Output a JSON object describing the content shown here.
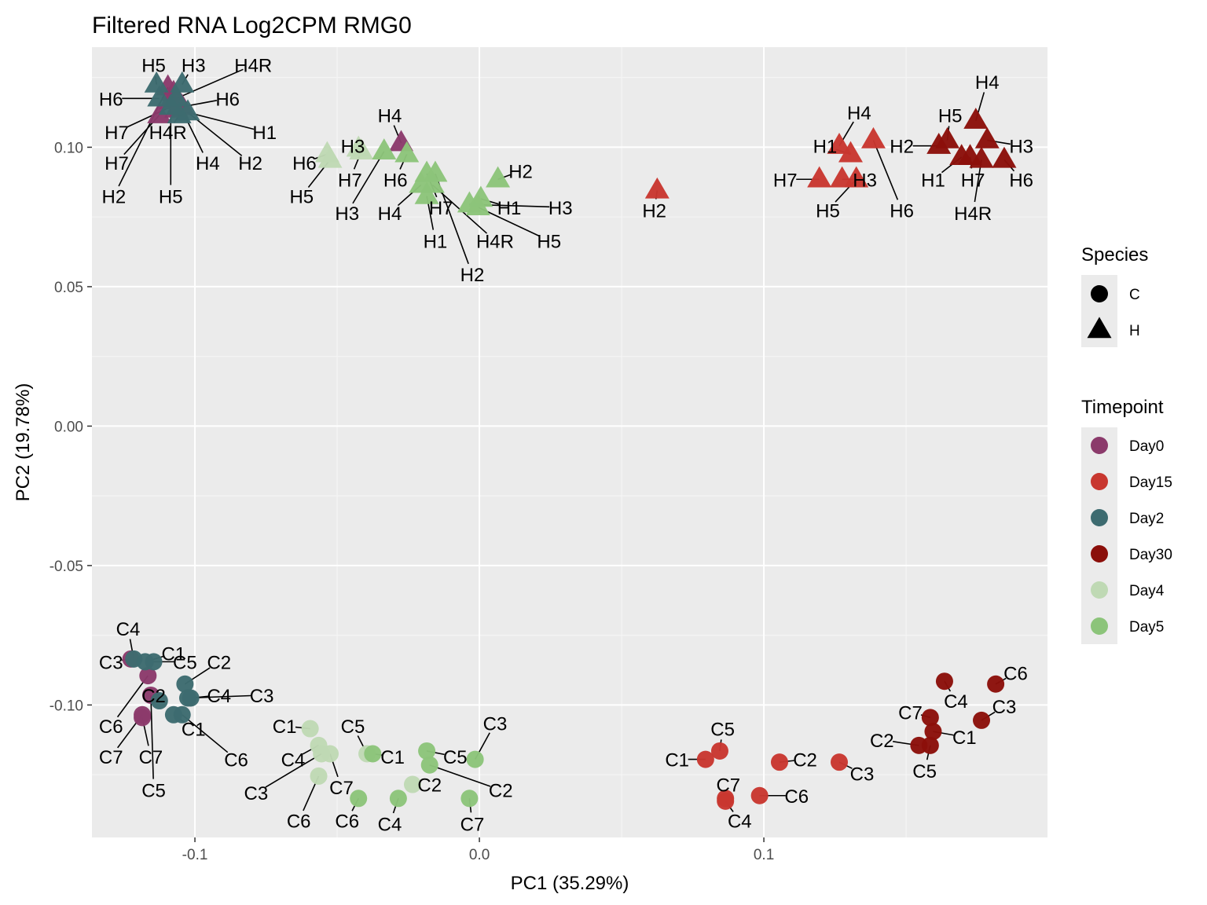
{
  "chart_data": {
    "type": "scatter",
    "title": "Filtered RNA Log2CPM RMG0",
    "xlabel": "PC1 (35.29%)",
    "ylabel": "PC2 (19.78%)",
    "xlim": [
      -0.1362,
      0.1997
    ],
    "ylim": [
      -0.1475,
      0.1359
    ],
    "x_ticks": [
      {
        "value": -0.1,
        "label": "-0.1"
      },
      {
        "value": 0.0,
        "label": "0.0"
      },
      {
        "value": 0.1,
        "label": "0.1"
      }
    ],
    "y_ticks": [
      {
        "value": 0.1,
        "label": "0.10"
      },
      {
        "value": 0.05,
        "label": "0.05"
      },
      {
        "value": 0.0,
        "label": "0.00"
      },
      {
        "value": -0.05,
        "label": "-0.05"
      },
      {
        "value": -0.1,
        "label": "-0.10"
      }
    ],
    "grid": true,
    "legend_position": "right",
    "legend": {
      "species": {
        "title": "Species",
        "items": [
          {
            "label": "C",
            "shape": "circle"
          },
          {
            "label": "H",
            "shape": "triangle"
          }
        ]
      },
      "timepoint": {
        "title": "Timepoint",
        "items": [
          {
            "label": "Day0",
            "color": "#8B3A6B"
          },
          {
            "label": "Day15",
            "color": "#C8372F"
          },
          {
            "label": "Day2",
            "color": "#3D6B70"
          },
          {
            "label": "Day30",
            "color": "#8B0F0A"
          },
          {
            "label": "Day4",
            "color": "#BFD9B4"
          },
          {
            "label": "Day5",
            "color": "#8CC47A"
          }
        ]
      }
    },
    "series": [
      {
        "name": "Day0",
        "color": "#8B3A6B",
        "points": [
          {
            "label": "H5",
            "species": "H",
            "x": -0.1085,
            "y": 0.1165,
            "lx": -0.1085,
            "ly": 0.0825
          },
          {
            "label": "H2",
            "species": "H",
            "x": -0.1095,
            "y": 0.1215,
            "lx": -0.1285,
            "ly": 0.0825
          },
          {
            "label": "H4",
            "species": "H",
            "x": -0.1075,
            "y": 0.1195,
            "lx": -0.0955,
            "ly": 0.0945
          },
          {
            "label": "H6",
            "species": "H",
            "x": -0.1045,
            "y": 0.1145,
            "lx": -0.0885,
            "ly": 0.1175
          },
          {
            "label": "H7",
            "species": "H",
            "x": -0.1125,
            "y": 0.1115,
            "lx": -0.1275,
            "ly": 0.0945
          },
          {
            "label": "H1",
            "species": "H",
            "x": -0.1065,
            "y": 0.1135,
            "lx": -0.0755,
            "ly": 0.1055
          },
          {
            "label": "H4",
            "species": "H",
            "x": -0.0275,
            "y": 0.1015,
            "lx": -0.0315,
            "ly": 0.1115
          },
          {
            "label": "C3",
            "species": "C",
            "x": -0.1225,
            "y": -0.0835,
            "lx": -0.1295,
            "ly": -0.0845
          },
          {
            "label": "C7",
            "species": "C",
            "x": -0.1185,
            "y": -0.1045,
            "lx": -0.1155,
            "ly": -0.1185
          },
          {
            "label": "C6",
            "species": "C",
            "x": -0.1165,
            "y": -0.0895,
            "lx": -0.1295,
            "ly": -0.1075
          },
          {
            "label": "C5",
            "species": "C",
            "x": -0.1155,
            "y": -0.0965,
            "lx": -0.1145,
            "ly": -0.1305
          },
          {
            "label": "C7",
            "species": "C",
            "x": -0.1185,
            "y": -0.1035,
            "lx": -0.1295,
            "ly": -0.1185
          }
        ]
      },
      {
        "name": "Day2",
        "color": "#3D6B70",
        "points": [
          {
            "label": "H5",
            "species": "H",
            "x": -0.1135,
            "y": 0.1225,
            "lx": -0.1145,
            "ly": 0.1295
          },
          {
            "label": "H3",
            "species": "H",
            "x": -0.1045,
            "y": 0.1225,
            "lx": -0.1005,
            "ly": 0.1295
          },
          {
            "label": "H4R",
            "species": "H",
            "x": -0.1065,
            "y": 0.1175,
            "lx": -0.0795,
            "ly": 0.1295
          },
          {
            "label": "H6",
            "species": "H",
            "x": -0.1125,
            "y": 0.1175,
            "lx": -0.1295,
            "ly": 0.1175
          },
          {
            "label": "H4R",
            "species": "H",
            "x": -0.1055,
            "y": 0.1115,
            "lx": -0.1095,
            "ly": 0.1055
          },
          {
            "label": "H2",
            "species": "H",
            "x": -0.1025,
            "y": 0.1125,
            "lx": -0.0805,
            "ly": 0.0945
          },
          {
            "label": "H7",
            "species": "H",
            "x": -0.1085,
            "y": 0.1145,
            "lx": -0.1275,
            "ly": 0.1055
          },
          {
            "label": "C1",
            "species": "C",
            "x": -0.1175,
            "y": -0.0845,
            "lx": -0.1075,
            "ly": -0.0815
          },
          {
            "label": "C4",
            "species": "C",
            "x": -0.1215,
            "y": -0.0835,
            "lx": -0.1235,
            "ly": -0.0725
          },
          {
            "label": "C2",
            "species": "C",
            "x": -0.1035,
            "y": -0.0925,
            "lx": -0.0915,
            "ly": -0.0845
          },
          {
            "label": "C4",
            "species": "C",
            "x": -0.1015,
            "y": -0.0975,
            "lx": -0.0915,
            "ly": -0.0965
          },
          {
            "label": "C5",
            "species": "C",
            "x": -0.1145,
            "y": -0.0845,
            "lx": -0.1035,
            "ly": -0.0845
          },
          {
            "label": "C3",
            "species": "C",
            "x": -0.1025,
            "y": -0.0975,
            "lx": -0.0765,
            "ly": -0.0965
          },
          {
            "label": "C1",
            "species": "C",
            "x": -0.1075,
            "y": -0.1035,
            "lx": -0.1005,
            "ly": -0.1085
          },
          {
            "label": "C2",
            "species": "C",
            "x": -0.1125,
            "y": -0.0985,
            "lx": -0.1145,
            "ly": -0.0965
          },
          {
            "label": "C6",
            "species": "C",
            "x": -0.1045,
            "y": -0.1035,
            "lx": -0.0855,
            "ly": -0.1195
          }
        ]
      },
      {
        "name": "Day4",
        "color": "#BFD9B4",
        "points": [
          {
            "label": "H6",
            "species": "H",
            "x": -0.0535,
            "y": 0.0975,
            "lx": -0.0615,
            "ly": 0.0945
          },
          {
            "label": "H5",
            "species": "H",
            "x": -0.0525,
            "y": 0.0955,
            "lx": -0.0625,
            "ly": 0.0825
          },
          {
            "label": "H3",
            "species": "H",
            "x": -0.0425,
            "y": 0.0995,
            "lx": -0.0445,
            "ly": 0.1005
          },
          {
            "label": "H7",
            "species": "H",
            "x": -0.0415,
            "y": 0.0985,
            "lx": -0.0455,
            "ly": 0.0885
          },
          {
            "label": "C1",
            "species": "C",
            "x": -0.0595,
            "y": -0.1085,
            "lx": -0.0685,
            "ly": -0.1075
          },
          {
            "label": "C4",
            "species": "C",
            "x": -0.0565,
            "y": -0.1145,
            "lx": -0.0655,
            "ly": -0.1195
          },
          {
            "label": "C3",
            "species": "C",
            "x": -0.0555,
            "y": -0.1175,
            "lx": -0.0785,
            "ly": -0.1315
          },
          {
            "label": "C6",
            "species": "C",
            "x": -0.0565,
            "y": -0.1255,
            "lx": -0.0635,
            "ly": -0.1415
          },
          {
            "label": "C7",
            "species": "C",
            "x": -0.0525,
            "y": -0.1175,
            "lx": -0.0485,
            "ly": -0.1295
          },
          {
            "label": "C5",
            "species": "C",
            "x": -0.0395,
            "y": -0.1175,
            "lx": -0.0445,
            "ly": -0.1075
          },
          {
            "label": "C2",
            "species": "C",
            "x": -0.0235,
            "y": -0.1285,
            "lx": -0.0175,
            "ly": -0.1285
          }
        ]
      },
      {
        "name": "Day5",
        "color": "#8CC47A",
        "points": [
          {
            "label": "H6",
            "species": "H",
            "x": -0.0255,
            "y": 0.0975,
            "lx": -0.0295,
            "ly": 0.0885
          },
          {
            "label": "H3",
            "species": "H",
            "x": -0.0335,
            "y": 0.0985,
            "lx": -0.0465,
            "ly": 0.0765
          },
          {
            "label": "H4",
            "species": "H",
            "x": -0.0205,
            "y": 0.0865,
            "lx": -0.0315,
            "ly": 0.0765
          },
          {
            "label": "H1",
            "species": "H",
            "x": -0.0185,
            "y": 0.0825,
            "lx": -0.0155,
            "ly": 0.0665
          },
          {
            "label": "H7",
            "species": "H",
            "x": -0.0185,
            "y": 0.0905,
            "lx": -0.0135,
            "ly": 0.0785
          },
          {
            "label": "H4R",
            "species": "H",
            "x": -0.0165,
            "y": 0.0865,
            "lx": 0.0055,
            "ly": 0.0665
          },
          {
            "label": "H2",
            "species": "H",
            "x": -0.0155,
            "y": 0.0905,
            "lx": -0.0025,
            "ly": 0.0545
          },
          {
            "label": "H2",
            "species": "H",
            "x": 0.0065,
            "y": 0.0885,
            "lx": 0.0145,
            "ly": 0.0915
          },
          {
            "label": "H1",
            "species": "H",
            "x": 0.0005,
            "y": 0.0815,
            "lx": 0.0105,
            "ly": 0.0785
          },
          {
            "label": "H3",
            "species": "H",
            "x": -0.0035,
            "y": 0.0795,
            "lx": 0.0285,
            "ly": 0.0785
          },
          {
            "label": "H5",
            "species": "H",
            "x": -0.0005,
            "y": 0.0785,
            "lx": 0.0245,
            "ly": 0.0665
          },
          {
            "label": "C1",
            "species": "C",
            "x": -0.0375,
            "y": -0.1175,
            "lx": -0.0305,
            "ly": -0.1185
          },
          {
            "label": "C5",
            "species": "C",
            "x": -0.0185,
            "y": -0.1165,
            "lx": -0.0085,
            "ly": -0.1185
          },
          {
            "label": "C3",
            "species": "C",
            "x": -0.0015,
            "y": -0.1195,
            "lx": 0.0055,
            "ly": -0.1065
          },
          {
            "label": "C2",
            "species": "C",
            "x": -0.0175,
            "y": -0.1215,
            "lx": 0.0075,
            "ly": -0.1305
          },
          {
            "label": "C7",
            "species": "C",
            "x": -0.0035,
            "y": -0.1335,
            "lx": -0.0025,
            "ly": -0.1425
          },
          {
            "label": "C6",
            "species": "C",
            "x": -0.0425,
            "y": -0.1335,
            "lx": -0.0465,
            "ly": -0.1415
          },
          {
            "label": "C4",
            "species": "C",
            "x": -0.0285,
            "y": -0.1335,
            "lx": -0.0315,
            "ly": -0.1425
          }
        ]
      },
      {
        "name": "Day15",
        "color": "#C8372F",
        "points": [
          {
            "label": "H2",
            "species": "H",
            "x": 0.0625,
            "y": 0.0845,
            "lx": 0.0615,
            "ly": 0.0775
          },
          {
            "label": "H4",
            "species": "H",
            "x": 0.1265,
            "y": 0.1005,
            "lx": 0.1335,
            "ly": 0.1125
          },
          {
            "label": "H1",
            "species": "H",
            "x": 0.1305,
            "y": 0.0975,
            "lx": 0.1215,
            "ly": 0.1005
          },
          {
            "label": "H6",
            "species": "H",
            "x": 0.1385,
            "y": 0.1025,
            "lx": 0.1485,
            "ly": 0.0775
          },
          {
            "label": "H7",
            "species": "H",
            "x": 0.1195,
            "y": 0.0885,
            "lx": 0.1075,
            "ly": 0.0885
          },
          {
            "label": "H3",
            "species": "H",
            "x": 0.1275,
            "y": 0.0885,
            "lx": 0.1355,
            "ly": 0.0885
          },
          {
            "label": "H5",
            "species": "H",
            "x": 0.1325,
            "y": 0.0885,
            "lx": 0.1225,
            "ly": 0.0775
          },
          {
            "label": "C5",
            "species": "C",
            "x": 0.0845,
            "y": -0.1165,
            "lx": 0.0855,
            "ly": -0.1085
          },
          {
            "label": "C1",
            "species": "C",
            "x": 0.0795,
            "y": -0.1195,
            "lx": 0.0695,
            "ly": -0.1195
          },
          {
            "label": "C7",
            "species": "C",
            "x": 0.0865,
            "y": -0.1335,
            "lx": 0.0875,
            "ly": -0.1285
          },
          {
            "label": "C4",
            "species": "C",
            "x": 0.0865,
            "y": -0.1345,
            "lx": 0.0915,
            "ly": -0.1415
          },
          {
            "label": "C6",
            "species": "C",
            "x": 0.0985,
            "y": -0.1325,
            "lx": 0.1115,
            "ly": -0.1325
          },
          {
            "label": "C2",
            "species": "C",
            "x": 0.1055,
            "y": -0.1205,
            "lx": 0.1145,
            "ly": -0.1195
          },
          {
            "label": "C3",
            "species": "C",
            "x": 0.1265,
            "y": -0.1205,
            "lx": 0.1345,
            "ly": -0.1245
          }
        ]
      },
      {
        "name": "Day30",
        "color": "#8B0F0A",
        "points": [
          {
            "label": "H4",
            "species": "H",
            "x": 0.1745,
            "y": 0.1095,
            "lx": 0.1785,
            "ly": 0.1235
          },
          {
            "label": "H5",
            "species": "H",
            "x": 0.1645,
            "y": 0.1025,
            "lx": 0.1655,
            "ly": 0.1115
          },
          {
            "label": "H2",
            "species": "H",
            "x": 0.1615,
            "y": 0.1005,
            "lx": 0.1485,
            "ly": 0.1005
          },
          {
            "label": "H3",
            "species": "H",
            "x": 0.1785,
            "y": 0.1025,
            "lx": 0.1905,
            "ly": 0.1005
          },
          {
            "label": "H1",
            "species": "H",
            "x": 0.1695,
            "y": 0.0965,
            "lx": 0.1595,
            "ly": 0.0885
          },
          {
            "label": "H7",
            "species": "H",
            "x": 0.1725,
            "y": 0.0965,
            "lx": 0.1735,
            "ly": 0.0885
          },
          {
            "label": "H6",
            "species": "H",
            "x": 0.1845,
            "y": 0.0955,
            "lx": 0.1905,
            "ly": 0.0885
          },
          {
            "label": "H4R",
            "species": "H",
            "x": 0.1765,
            "y": 0.0955,
            "lx": 0.1735,
            "ly": 0.0765
          },
          {
            "label": "C6",
            "species": "C",
            "x": 0.1815,
            "y": -0.0925,
            "lx": 0.1885,
            "ly": -0.0885
          },
          {
            "label": "C3",
            "species": "C",
            "x": 0.1765,
            "y": -0.1055,
            "lx": 0.1845,
            "ly": -0.1005
          },
          {
            "label": "C4",
            "species": "C",
            "x": 0.1635,
            "y": -0.0915,
            "lx": 0.1675,
            "ly": -0.0985
          },
          {
            "label": "C7",
            "species": "C",
            "x": 0.1585,
            "y": -0.1045,
            "lx": 0.1515,
            "ly": -0.1025
          },
          {
            "label": "C1",
            "species": "C",
            "x": 0.1595,
            "y": -0.1095,
            "lx": 0.1705,
            "ly": -0.1115
          },
          {
            "label": "C2",
            "species": "C",
            "x": 0.1545,
            "y": -0.1145,
            "lx": 0.1415,
            "ly": -0.1125
          },
          {
            "label": "C5",
            "species": "C",
            "x": 0.1585,
            "y": -0.1145,
            "lx": 0.1565,
            "ly": -0.1235
          }
        ]
      }
    ]
  }
}
